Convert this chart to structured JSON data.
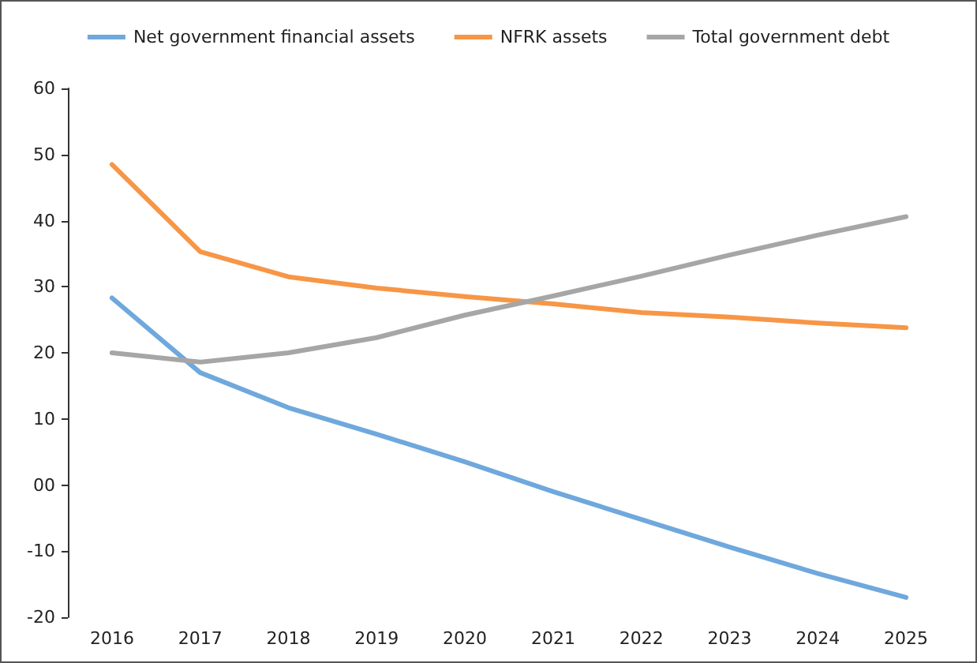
{
  "chart_data": {
    "type": "line",
    "categories": [
      "2016",
      "2017",
      "2018",
      "2019",
      "2020",
      "2021",
      "2022",
      "2023",
      "2024",
      "2025"
    ],
    "series": [
      {
        "name": "Net government financial assets",
        "color": "#6fa8dc",
        "values": [
          28.3,
          17,
          11.7,
          7.7,
          3.5,
          -1,
          -5.2,
          -9.4,
          -13.4,
          -17
        ]
      },
      {
        "name": "NFRK assets",
        "color": "#f79646",
        "values": [
          48.5,
          35.3,
          31.5,
          29.8,
          28.5,
          27.4,
          26.1,
          25.4,
          24.5,
          23.8
        ]
      },
      {
        "name": "Total government debt",
        "color": "#a6a6a6",
        "values": [
          20,
          18.6,
          20,
          22.3,
          25.7,
          28.6,
          31.6,
          34.8,
          37.8,
          40.6
        ]
      }
    ],
    "ylim": [
      -20,
      60
    ],
    "yticks": [
      -20,
      -10,
      {
        "value": 0,
        "label": "00"
      },
      10,
      20,
      30,
      40,
      50,
      60
    ],
    "grid": false,
    "legend": "top",
    "marker": "none",
    "line_style": "solid"
  }
}
